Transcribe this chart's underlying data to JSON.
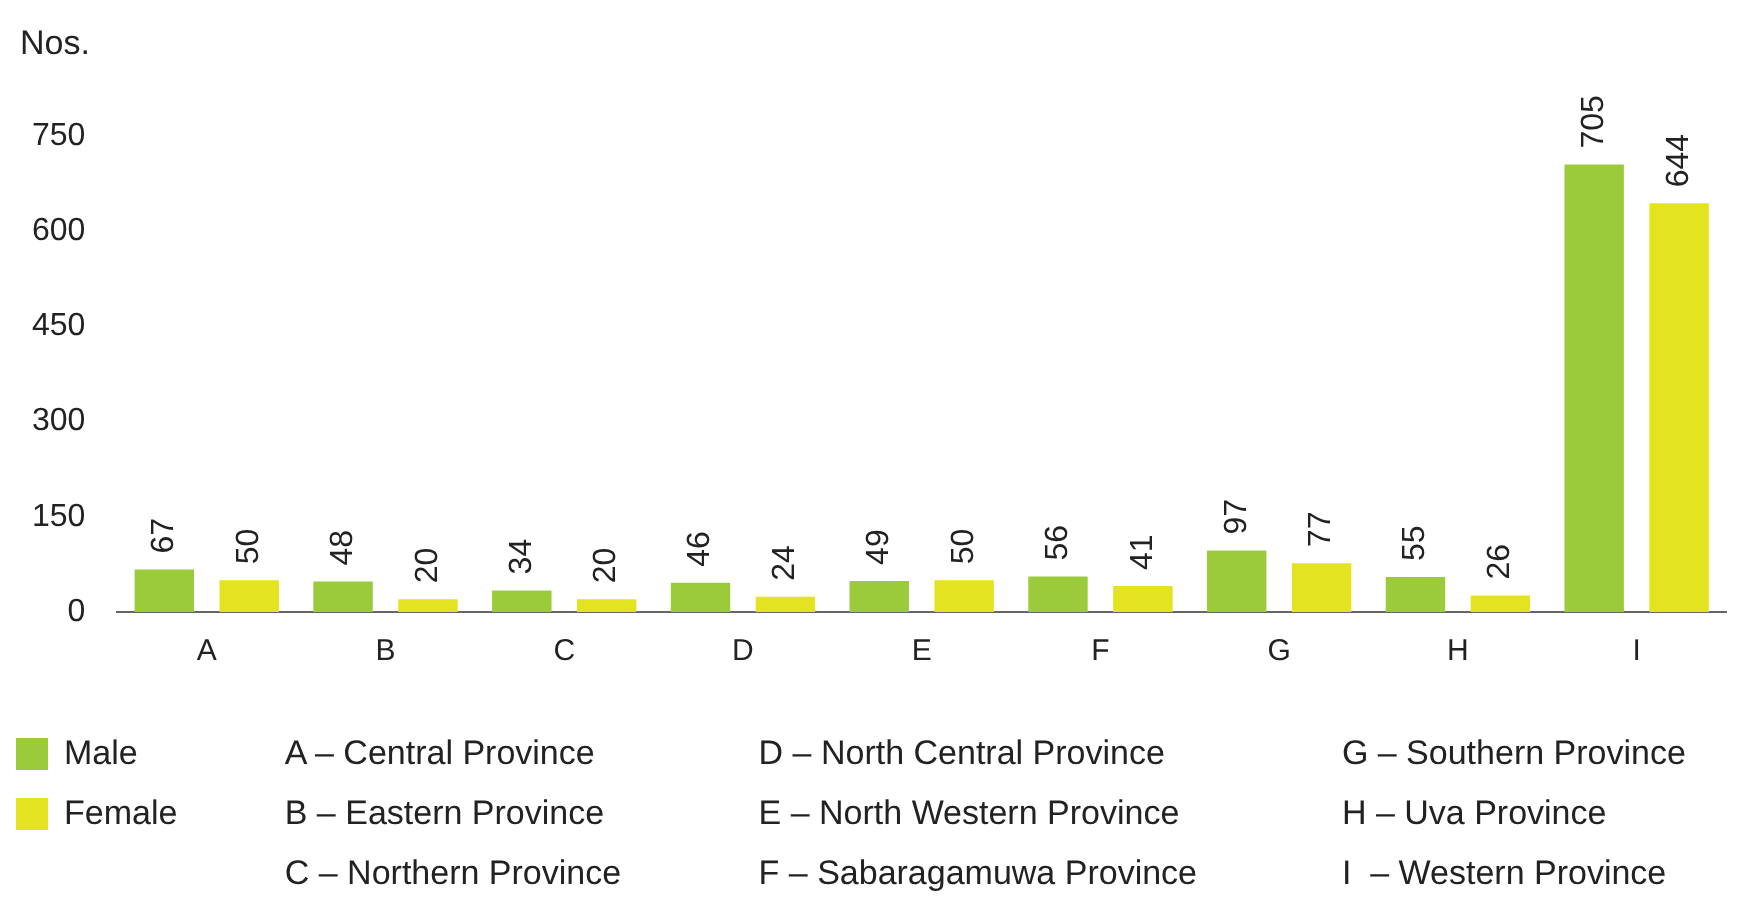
{
  "chart_data": {
    "type": "bar",
    "ylabel": "Nos.",
    "categories": [
      "A",
      "B",
      "C",
      "D",
      "E",
      "F",
      "G",
      "H",
      "I"
    ],
    "series": [
      {
        "name": "Male",
        "color": "#9bcb3b",
        "values": [
          67,
          48,
          34,
          46,
          49,
          56,
          97,
          55,
          705
        ]
      },
      {
        "name": "Female",
        "color": "#e3e31f",
        "values": [
          50,
          20,
          20,
          24,
          50,
          41,
          77,
          26,
          644
        ]
      }
    ],
    "ylim": [
      0,
      750
    ],
    "yticks": [
      0,
      150,
      300,
      450,
      600,
      750
    ],
    "data_labels": true,
    "legend": "bottom left",
    "annotations": [
      "A – Central Province",
      "B – Eastern Province",
      "C – Northern Province",
      "D – North Central Province",
      "E – North Western Province",
      "F – Sabaragamuwa Province",
      "G – Southern Province",
      "H – Uva Province",
      "I  – Western Province"
    ]
  }
}
